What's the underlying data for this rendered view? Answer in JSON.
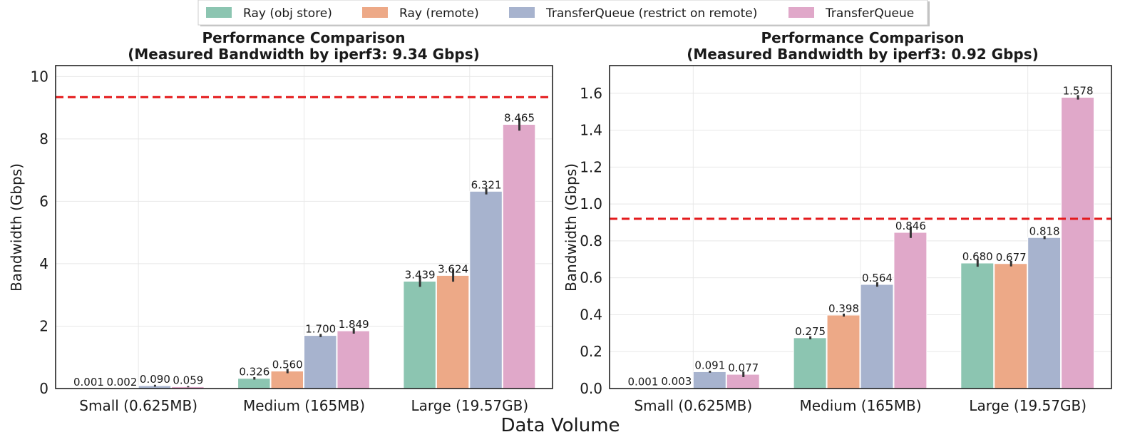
{
  "legend": [
    "Ray (obj store)",
    "Ray (remote)",
    "TransferQueue (restrict on remote)",
    "TransferQueue"
  ],
  "colors": [
    "#8cc5b1",
    "#eda987",
    "#a7b3ce",
    "#e0a8c9"
  ],
  "reference_line_color": "#e41a1c",
  "xlabel": "Data Volume",
  "chart_data": [
    {
      "type": "bar",
      "title_line1": "Performance Comparison",
      "title_line2": "(Measured Bandwidth by iperf3: 9.34 Gbps)",
      "ylabel": "Bandwidth (Gbps)",
      "categories": [
        "Small (0.625MB)",
        "Medium (165MB)",
        "Large (19.57GB)"
      ],
      "ylim": [
        0,
        10.35
      ],
      "yticks": [
        0,
        2,
        4,
        6,
        8,
        10
      ],
      "ytick_labels": [
        "0",
        "2",
        "4",
        "6",
        "8",
        "10"
      ],
      "reference_line": 9.34,
      "series": [
        {
          "name": "Ray (obj store)",
          "values": [
            0.001,
            0.326,
            3.439
          ],
          "labels": [
            "0.001",
            "0.326",
            "3.439"
          ],
          "err": [
            0,
            0.04,
            0.18
          ]
        },
        {
          "name": "Ray (remote)",
          "values": [
            0.002,
            0.56,
            3.624
          ],
          "labels": [
            "0.002",
            "0.560",
            "3.624"
          ],
          "err": [
            0,
            0.07,
            0.2
          ]
        },
        {
          "name": "TransferQueue (restrict on remote)",
          "values": [
            0.09,
            1.7,
            6.321
          ],
          "labels": [
            "0.090",
            "1.700",
            "6.321"
          ],
          "err": [
            0.03,
            0.05,
            0.1
          ]
        },
        {
          "name": "TransferQueue",
          "values": [
            0.059,
            1.849,
            8.465
          ],
          "labels": [
            "0.059",
            "1.849",
            "8.465"
          ],
          "err": [
            0.02,
            0.09,
            0.2
          ]
        }
      ]
    },
    {
      "type": "bar",
      "title_line1": "Performance Comparison",
      "title_line2": "(Measured Bandwidth by iperf3: 0.92 Gbps)",
      "ylabel": "Bandwidth (Gbps)",
      "categories": [
        "Small (0.625MB)",
        "Medium (165MB)",
        "Large (19.57GB)"
      ],
      "ylim": [
        0,
        1.75
      ],
      "yticks": [
        0,
        0.2,
        0.4,
        0.6,
        0.8,
        1.0,
        1.2,
        1.4,
        1.6
      ],
      "ytick_labels": [
        "0.0",
        "0.2",
        "0.4",
        "0.6",
        "0.8",
        "1.0",
        "1.2",
        "1.4",
        "1.6"
      ],
      "reference_line": 0.92,
      "series": [
        {
          "name": "Ray (obj store)",
          "values": [
            0.001,
            0.275,
            0.68
          ],
          "labels": [
            "0.001",
            "0.275",
            "0.680"
          ],
          "err": [
            0,
            0.008,
            0.02
          ]
        },
        {
          "name": "Ray (remote)",
          "values": [
            0.003,
            0.398,
            0.677
          ],
          "labels": [
            "0.003",
            "0.398",
            "0.677"
          ],
          "err": [
            0,
            0.008,
            0.015
          ]
        },
        {
          "name": "TransferQueue (restrict on remote)",
          "values": [
            0.091,
            0.564,
            0.818
          ],
          "labels": [
            "0.091",
            "0.564",
            "0.818"
          ],
          "err": [
            0.005,
            0.012,
            0.008
          ]
        },
        {
          "name": "TransferQueue",
          "values": [
            0.077,
            0.846,
            1.578
          ],
          "labels": [
            "0.077",
            "0.846",
            "1.578"
          ],
          "err": [
            0.015,
            0.03,
            0.012
          ]
        }
      ]
    }
  ]
}
